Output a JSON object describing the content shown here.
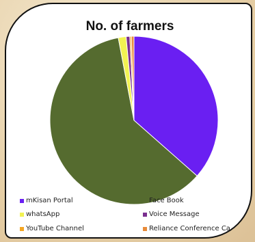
{
  "chart_data": {
    "type": "pie",
    "title": "No. of farmers",
    "series": [
      {
        "name": "mKisan Portal",
        "value": 36.5,
        "color": "#6a1ff2"
      },
      {
        "name": "Face Book",
        "value": 60.5,
        "color": "#556b2f"
      },
      {
        "name": "whatsApp",
        "value": 1.5,
        "color": "#f2f252"
      },
      {
        "name": "Voice Message",
        "value": 0.7,
        "color": "#7a2f8f"
      },
      {
        "name": "YouTube Channel",
        "value": 0.3,
        "color": "#f5a623"
      },
      {
        "name": "Reliance Conference Ca",
        "value": 0.5,
        "color": "#e88a3a"
      }
    ],
    "legend": "bottom"
  }
}
